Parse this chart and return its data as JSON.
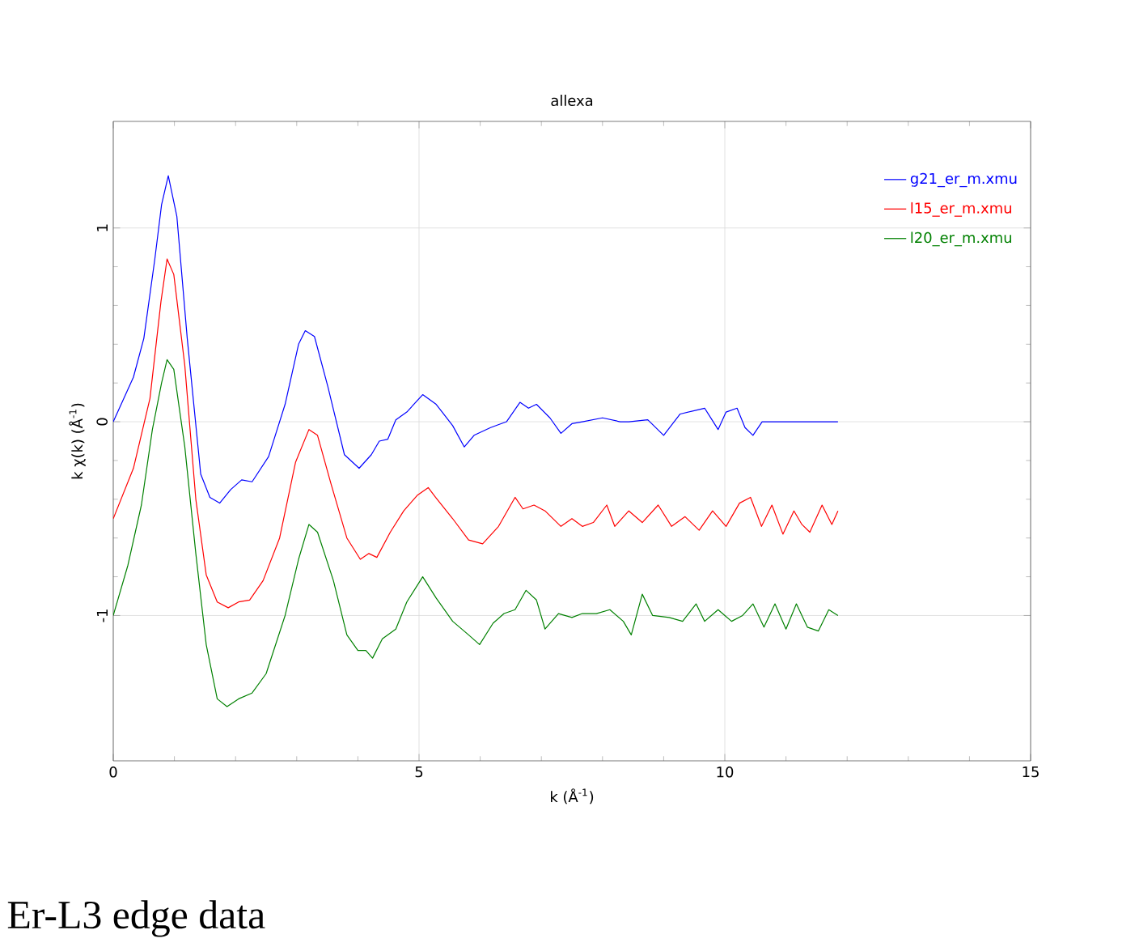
{
  "chart_data": {
    "type": "line",
    "title": "allexa",
    "xlabel": "k (Å$^{-1}$)",
    "ylabel": "k χ(k) (Å$^{-1}$)",
    "annotations": [
      "Er-L3 edge  data"
    ],
    "xlim": [
      0,
      15
    ],
    "ylim": [
      -1.75,
      1.55
    ],
    "xticks": [
      0,
      5,
      10,
      15
    ],
    "yticks": [
      -1,
      0,
      1
    ],
    "grid": true,
    "legend": "top right",
    "line_style": "solid",
    "marker": "none",
    "series": [
      {
        "name": "g21_er_m.xmu",
        "color": "#0000ff",
        "x": [
          0,
          0.33,
          0.5,
          0.68,
          0.79,
          0.9,
          1.04,
          1.21,
          1.43,
          1.58,
          1.74,
          1.92,
          2.1,
          2.27,
          2.54,
          2.81,
          3.03,
          3.14,
          3.29,
          3.51,
          3.78,
          4.02,
          4.22,
          4.35,
          4.49,
          4.62,
          4.8,
          5.06,
          5.28,
          5.55,
          5.74,
          5.9,
          6.17,
          6.43,
          6.65,
          6.79,
          6.92,
          7.14,
          7.32,
          7.5,
          7.67,
          8.0,
          8.29,
          8.43,
          8.74,
          9.0,
          9.27,
          9.67,
          9.89,
          10.02,
          10.2,
          10.33,
          10.46,
          10.61,
          11.85
        ],
        "values": [
          0,
          0.23,
          0.43,
          0.84,
          1.12,
          1.27,
          1.06,
          0.43,
          -0.27,
          -0.39,
          -0.42,
          -0.35,
          -0.3,
          -0.31,
          -0.18,
          0.09,
          0.4,
          0.47,
          0.44,
          0.18,
          -0.17,
          -0.24,
          -0.17,
          -0.1,
          -0.09,
          0.01,
          0.05,
          0.14,
          0.09,
          -0.02,
          -0.13,
          -0.07,
          -0.03,
          0,
          0.1,
          0.07,
          0.09,
          0.02,
          -0.06,
          -0.01,
          0,
          0.02,
          0,
          0,
          0.01,
          -0.07,
          0.04,
          0.07,
          -0.04,
          0.05,
          0.07,
          -0.03,
          -0.07,
          0,
          0
        ]
      },
      {
        "name": "l15_er_m.xmu",
        "color": "#ff0000",
        "x": [
          0,
          0.33,
          0.6,
          0.78,
          0.88,
          0.99,
          1.17,
          1.35,
          1.52,
          1.7,
          1.88,
          2.05,
          2.23,
          2.45,
          2.72,
          2.98,
          3.2,
          3.34,
          3.56,
          3.82,
          4.04,
          4.18,
          4.31,
          4.53,
          4.75,
          4.97,
          5.15,
          5.27,
          5.55,
          5.81,
          6.04,
          6.3,
          6.57,
          6.7,
          6.88,
          7.06,
          7.32,
          7.5,
          7.67,
          7.85,
          8.07,
          8.2,
          8.43,
          8.65,
          8.91,
          9.13,
          9.35,
          9.58,
          9.8,
          10.02,
          10.24,
          10.42,
          10.6,
          10.77,
          10.95,
          11.13,
          11.26,
          11.39,
          11.59,
          11.75,
          11.85
        ],
        "values": [
          -0.5,
          -0.24,
          0.12,
          0.62,
          0.84,
          0.76,
          0.29,
          -0.4,
          -0.79,
          -0.93,
          -0.96,
          -0.93,
          -0.92,
          -0.82,
          -0.6,
          -0.21,
          -0.04,
          -0.07,
          -0.32,
          -0.6,
          -0.71,
          -0.68,
          -0.7,
          -0.57,
          -0.46,
          -0.38,
          -0.34,
          -0.39,
          -0.5,
          -0.61,
          -0.63,
          -0.54,
          -0.39,
          -0.45,
          -0.43,
          -0.46,
          -0.54,
          -0.5,
          -0.54,
          -0.52,
          -0.43,
          -0.54,
          -0.46,
          -0.52,
          -0.43,
          -0.54,
          -0.49,
          -0.56,
          -0.46,
          -0.54,
          -0.42,
          -0.39,
          -0.54,
          -0.43,
          -0.58,
          -0.46,
          -0.53,
          -0.57,
          -0.43,
          -0.53,
          -0.46
        ]
      },
      {
        "name": "l20_er_m.xmu",
        "color": "#008000",
        "x": [
          0,
          0.24,
          0.46,
          0.64,
          0.79,
          0.88,
          0.99,
          1.17,
          1.35,
          1.52,
          1.7,
          1.86,
          2.05,
          2.27,
          2.5,
          2.81,
          3.03,
          3.2,
          3.34,
          3.6,
          3.82,
          4.0,
          4.13,
          4.24,
          4.4,
          4.62,
          4.8,
          5.06,
          5.28,
          5.55,
          5.81,
          5.99,
          6.21,
          6.39,
          6.57,
          6.75,
          6.92,
          7.06,
          7.28,
          7.5,
          7.67,
          7.9,
          8.12,
          8.34,
          8.47,
          8.65,
          8.82,
          9.09,
          9.31,
          9.53,
          9.67,
          9.89,
          10.11,
          10.29,
          10.46,
          10.64,
          10.82,
          11.0,
          11.17,
          11.35,
          11.53,
          11.7,
          11.85
        ],
        "values": [
          -1,
          -0.74,
          -0.43,
          -0.04,
          0.2,
          0.32,
          0.27,
          -0.13,
          -0.68,
          -1.15,
          -1.43,
          -1.47,
          -1.43,
          -1.4,
          -1.3,
          -1,
          -0.71,
          -0.53,
          -0.57,
          -0.82,
          -1.1,
          -1.18,
          -1.18,
          -1.22,
          -1.12,
          -1.07,
          -0.93,
          -0.8,
          -0.91,
          -1.03,
          -1.1,
          -1.15,
          -1.04,
          -0.99,
          -0.97,
          -0.87,
          -0.92,
          -1.07,
          -0.99,
          -1.01,
          -0.99,
          -0.99,
          -0.97,
          -1.03,
          -1.1,
          -0.89,
          -1,
          -1.01,
          -1.03,
          -0.94,
          -1.03,
          -0.97,
          -1.03,
          -1,
          -0.94,
          -1.06,
          -0.94,
          -1.07,
          -0.94,
          -1.06,
          -1.08,
          -0.97,
          -1
        ]
      }
    ]
  }
}
